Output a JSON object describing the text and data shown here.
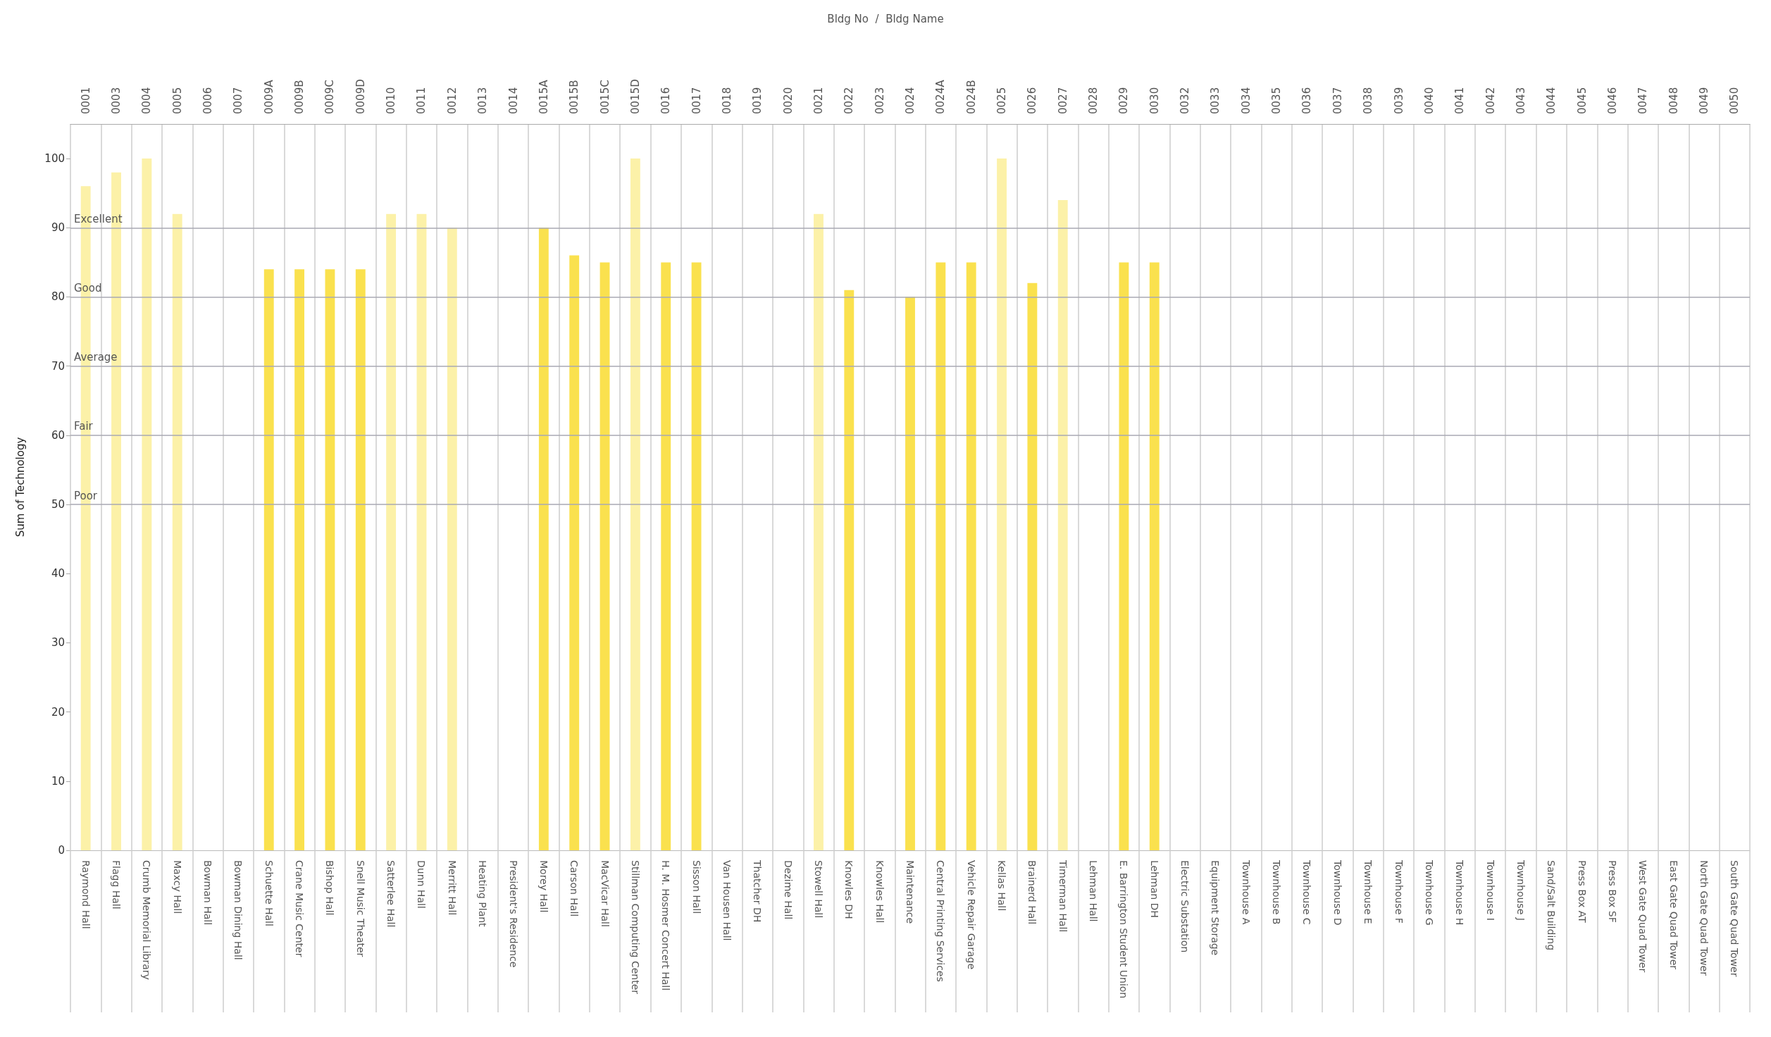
{
  "chart_data": {
    "type": "bar",
    "title": "Bldg No  /  Bldg Name",
    "ylabel": "Sum of Technology",
    "categories": [
      "Raymond Hall",
      "Flagg Hall",
      "Crumb Memorial Library",
      "Maxcy Hall",
      "Bowman Hall",
      "Bowman Dining Hall",
      "Schuette Hall",
      "Crane Music Center",
      "Bishop Hall",
      "Snell Music Theater",
      "Satterlee Hall",
      "Dunn Hall",
      "Merritt Hall",
      "Heating Plant",
      "President's Residence",
      "Morey Hall",
      "Carson Hall",
      "MacVicar Hall",
      "Stillman Computing Center",
      "H. M. Hosmer Concert Hall",
      "Sisson Hall",
      "Van Housen Hall",
      "Thatcher DH",
      "Dezime Hall",
      "Stowell Hall",
      "Knowles DH",
      "Knowles Hall",
      "Maintenance",
      "Central Printing Services",
      "Vehicle Repair Garage",
      "Kellas Hall",
      "Brainerd Hall",
      "Timerman Hall",
      "Lehman Hall",
      "E. Barrington Student Union",
      "Lehman DH",
      "Electric Substation",
      "Equipment Storage",
      "Townhouse A",
      "Townhouse B",
      "Townhouse C",
      "Townhouse D",
      "Townhouse E",
      "Townhouse F",
      "Townhouse G",
      "Townhouse H",
      "Townhouse I",
      "Townhouse J",
      "Sand/Salt Building",
      "Press Box AT",
      "Press Box SF",
      "West Gate Quad Tower",
      "East Gate Quad Tower",
      "North Gate Quad Tower",
      "South Gate Quad Tower"
    ],
    "annotations": [
      "0001",
      "0003",
      "0004",
      "0005",
      "0006",
      "0007",
      "0009A",
      "0009B",
      "0009C",
      "0009D",
      "0010",
      "0011",
      "0012",
      "0013",
      "0014",
      "0015A",
      "0015B",
      "0015C",
      "0015D",
      "0016",
      "0017",
      "0018",
      "0019",
      "0020",
      "0021",
      "0022",
      "0023",
      "0024",
      "0024A",
      "0024B",
      "0025",
      "0026",
      "0027",
      "0028",
      "0029",
      "0030",
      "0032",
      "0033",
      "0034",
      "0035",
      "0036",
      "0037",
      "0038",
      "0039",
      "0040",
      "0041",
      "0042",
      "0043",
      "0044",
      "0045",
      "0046",
      "0047",
      "0048",
      "0049",
      "0050"
    ],
    "values": [
      96,
      98,
      100,
      92,
      null,
      null,
      84,
      84,
      84,
      84,
      92,
      92,
      90,
      null,
      null,
      90,
      86,
      85,
      100,
      85,
      85,
      null,
      null,
      null,
      92,
      81,
      null,
      80,
      85,
      85,
      100,
      82,
      94,
      null,
      85,
      85,
      null,
      null,
      null,
      null,
      null,
      null,
      null,
      null,
      null,
      null,
      null,
      null,
      null,
      null,
      null,
      null,
      null,
      null,
      null
    ],
    "colors": [
      "#fcf1a8",
      "#fcf1a8",
      "#fcf1a8",
      "#fcf1a8",
      null,
      null,
      "#fae14e",
      "#fae14e",
      "#fae14e",
      "#fae14e",
      "#fcf1a8",
      "#fcf1a8",
      "#fcf1a8",
      null,
      null,
      "#fae14e",
      "#fae14e",
      "#fae14e",
      "#fcf1a8",
      "#fae14e",
      "#fae14e",
      null,
      null,
      null,
      "#fcf1a8",
      "#fae14e",
      null,
      "#fae14e",
      "#fae14e",
      "#fae14e",
      "#fcf1a8",
      "#fae14e",
      "#fcf1a8",
      null,
      "#fae14e",
      "#fae14e",
      null,
      null,
      null,
      null,
      null,
      null,
      null,
      null,
      null,
      null,
      null,
      null,
      null,
      null,
      null,
      null,
      null,
      null,
      null
    ],
    "ylim": [
      0,
      105
    ],
    "yticks": [
      0,
      10,
      20,
      30,
      40,
      50,
      60,
      70,
      80,
      90,
      100
    ],
    "grid": "x",
    "ref_lines": [
      {
        "axis": "y",
        "value": 90,
        "label": "Excellent",
        "color": "#a9a9b3"
      },
      {
        "axis": "y",
        "value": 80,
        "label": "Good",
        "color": "#a9a9b3"
      },
      {
        "axis": "y",
        "value": 70,
        "label": "Average",
        "color": "#a9a9b3"
      },
      {
        "axis": "y",
        "value": 60,
        "label": "Fair",
        "color": "#a9a9b3"
      },
      {
        "axis": "y",
        "value": 50,
        "label": "Poor",
        "color": "#a9a9b3"
      }
    ]
  }
}
